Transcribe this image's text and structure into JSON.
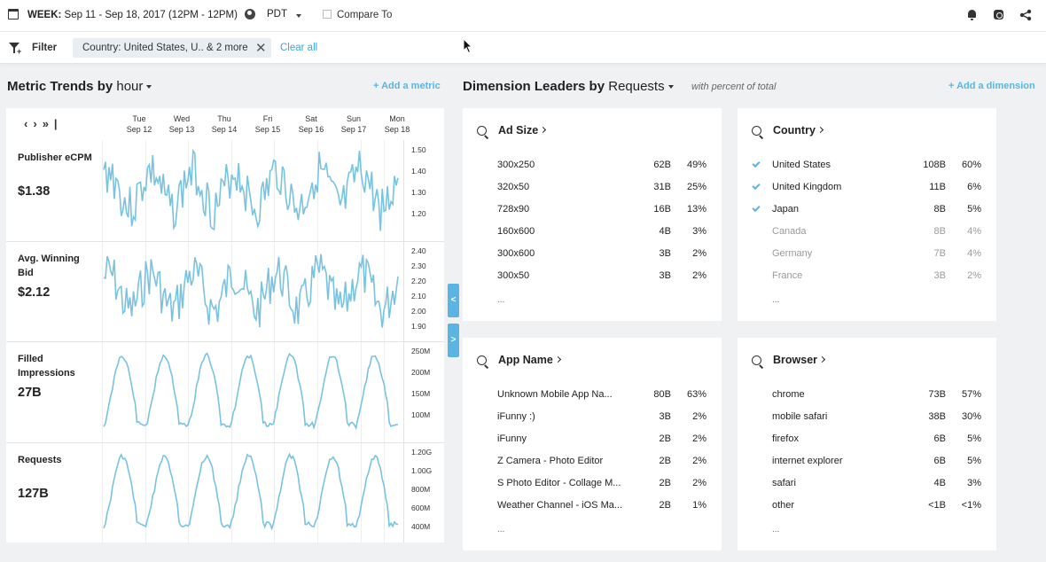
{
  "topbar": {
    "week_label": "WEEK:",
    "week_range": "Sep 11 - Sep 18, 2017 (12PM - 12PM)",
    "timezone": "PDT",
    "compare_label": "Compare To"
  },
  "filterbar": {
    "filter_label": "Filter",
    "chip_text": "Country: United States, U.. & 2 more",
    "clear_all": "Clear all"
  },
  "metric_trends": {
    "title": "Metric Trends by",
    "granularity": "hour",
    "add_metric": "+ Add a metric",
    "days": [
      {
        "dow": "Tue",
        "date": "Sep 12"
      },
      {
        "dow": "Wed",
        "date": "Sep 13"
      },
      {
        "dow": "Thu",
        "date": "Sep 14"
      },
      {
        "dow": "Fri",
        "date": "Sep 15"
      },
      {
        "dow": "Sat",
        "date": "Sep 16"
      },
      {
        "dow": "Sun",
        "date": "Sep 17"
      },
      {
        "dow": "Mon",
        "date": "Sep 18"
      }
    ],
    "metrics": [
      {
        "label": "Publisher eCPM",
        "value": "$1.38",
        "ticks": [
          "1.50",
          "1.40",
          "1.30",
          "1.20"
        ]
      },
      {
        "label": "Avg. Winning Bid",
        "value": "$2.12",
        "ticks": [
          "2.40",
          "2.30",
          "2.20",
          "2.10",
          "2.00",
          "1.90"
        ]
      },
      {
        "label": "Filled Impressions",
        "value": "27B",
        "ticks": [
          "250M",
          "200M",
          "150M",
          "100M"
        ]
      },
      {
        "label": "Requests",
        "value": "127B",
        "ticks": [
          "1.20G",
          "1.00G",
          "800M",
          "600M",
          "400M"
        ]
      }
    ]
  },
  "dimension_leaders": {
    "title": "Dimension Leaders by",
    "measure": "Requests",
    "note": "with percent of total",
    "add_dimension": "+ Add a dimension",
    "more": "...",
    "cards": [
      {
        "title": "Ad Size",
        "rows": [
          {
            "name": "300x250",
            "value": "62B",
            "pct": "49%"
          },
          {
            "name": "320x50",
            "value": "31B",
            "pct": "25%"
          },
          {
            "name": "728x90",
            "value": "16B",
            "pct": "13%"
          },
          {
            "name": "160x600",
            "value": "4B",
            "pct": "3%"
          },
          {
            "name": "300x600",
            "value": "3B",
            "pct": "2%"
          },
          {
            "name": "300x50",
            "value": "3B",
            "pct": "2%"
          }
        ]
      },
      {
        "title": "Country",
        "rows": [
          {
            "name": "United States",
            "value": "108B",
            "pct": "60%",
            "selected": true
          },
          {
            "name": "United Kingdom",
            "value": "11B",
            "pct": "6%",
            "selected": true
          },
          {
            "name": "Japan",
            "value": "8B",
            "pct": "5%",
            "selected": true
          },
          {
            "name": "Canada",
            "value": "8B",
            "pct": "4%",
            "selected": false
          },
          {
            "name": "Germany",
            "value": "7B",
            "pct": "4%",
            "selected": false
          },
          {
            "name": "France",
            "value": "3B",
            "pct": "2%",
            "selected": false
          }
        ]
      },
      {
        "title": "App Name",
        "rows": [
          {
            "name": "Unknown Mobile App Na...",
            "value": "80B",
            "pct": "63%"
          },
          {
            "name": "iFunny :)",
            "value": "3B",
            "pct": "2%"
          },
          {
            "name": "iFunny",
            "value": "2B",
            "pct": "2%"
          },
          {
            "name": "Z Camera - Photo Editor",
            "value": "2B",
            "pct": "2%"
          },
          {
            "name": "S Photo Editor - Collage M...",
            "value": "2B",
            "pct": "2%"
          },
          {
            "name": "Weather Channel - iOS Ma...",
            "value": "2B",
            "pct": "1%"
          }
        ]
      },
      {
        "title": "Browser",
        "rows": [
          {
            "name": "chrome",
            "value": "73B",
            "pct": "57%"
          },
          {
            "name": "mobile safari",
            "value": "38B",
            "pct": "30%"
          },
          {
            "name": "firefox",
            "value": "6B",
            "pct": "5%"
          },
          {
            "name": "internet explorer",
            "value": "6B",
            "pct": "5%"
          },
          {
            "name": "safari",
            "value": "4B",
            "pct": "3%"
          },
          {
            "name": "other",
            "value": "<1B",
            "pct": "<1%"
          }
        ]
      }
    ]
  },
  "colors": {
    "accent": "#5ab5e2",
    "line": "#78c3e0"
  },
  "icons": [
    "calendar-icon",
    "globe-icon",
    "bell-icon",
    "copy-icon",
    "share-icon",
    "filter-icon",
    "close-icon",
    "search-icon",
    "check-icon",
    "chevron-right-icon"
  ]
}
